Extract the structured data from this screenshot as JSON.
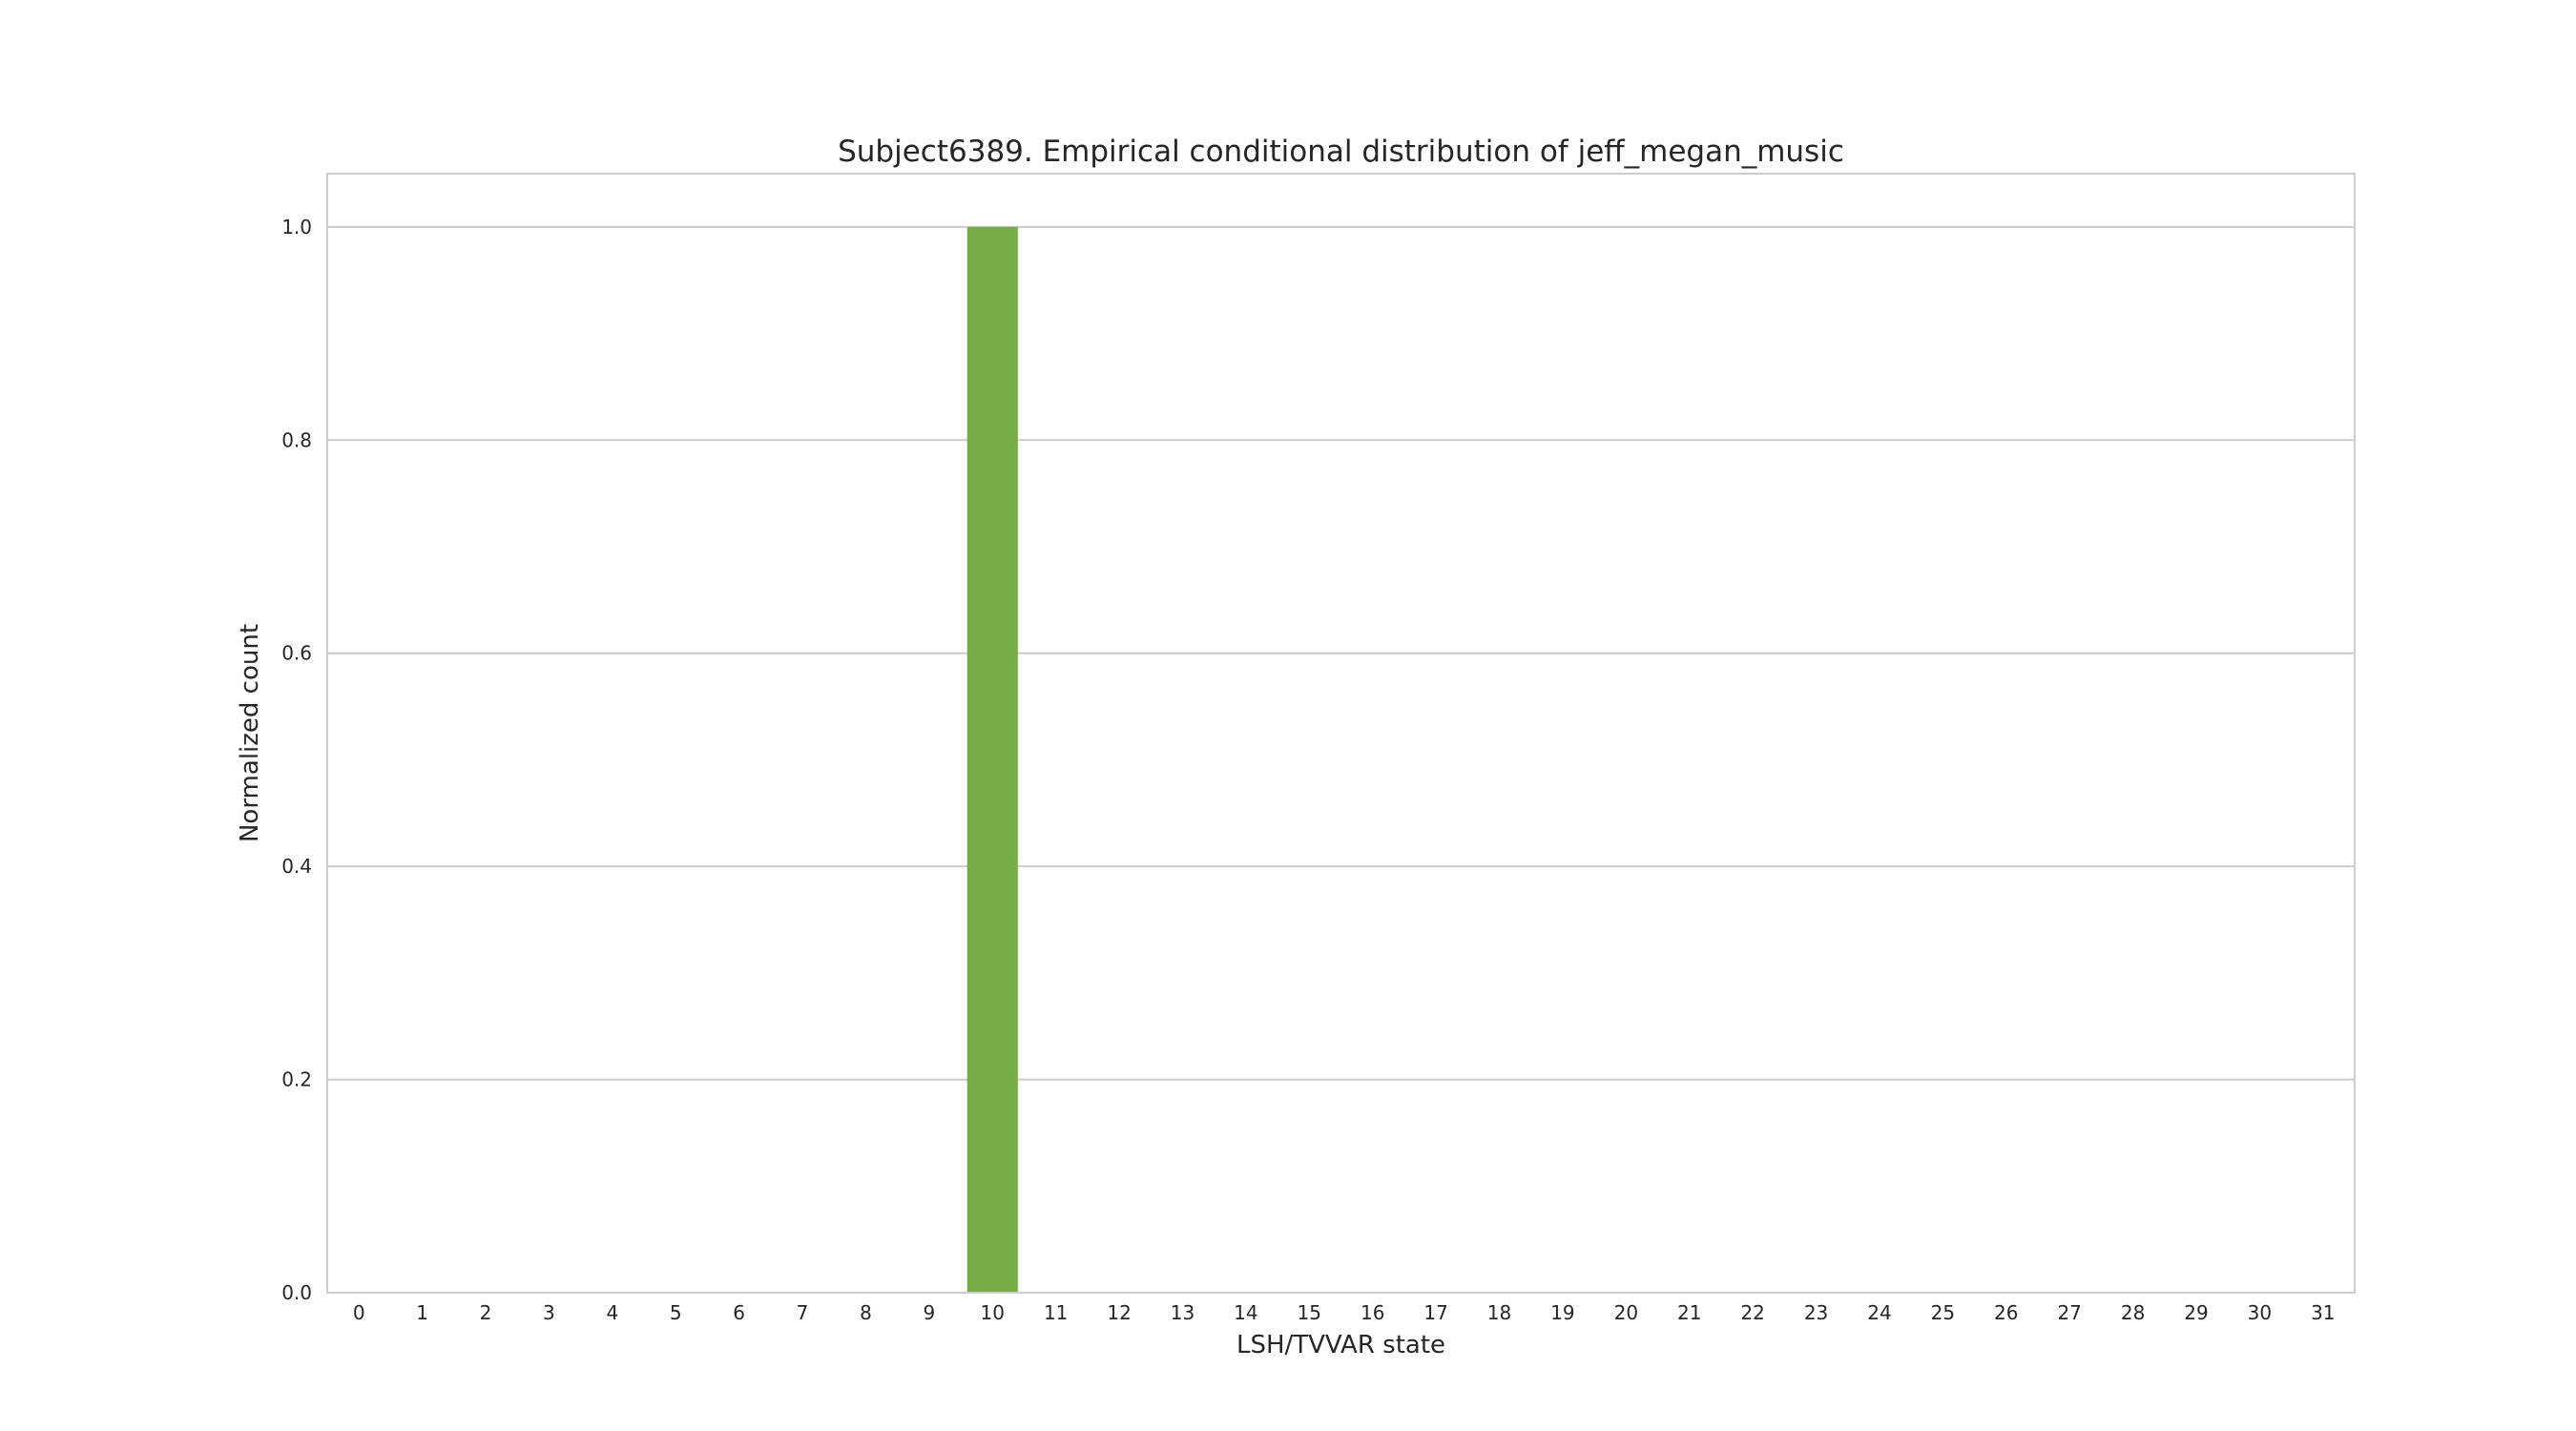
{
  "chart_data": {
    "type": "bar",
    "title": "Subject6389. Empirical conditional distribution of jeff_megan_music",
    "xlabel": "LSH/TVVAR state",
    "ylabel": "Normalized count",
    "categories": [
      "0",
      "1",
      "2",
      "3",
      "4",
      "5",
      "6",
      "7",
      "8",
      "9",
      "10",
      "11",
      "12",
      "13",
      "14",
      "15",
      "16",
      "17",
      "18",
      "19",
      "20",
      "21",
      "22",
      "23",
      "24",
      "25",
      "26",
      "27",
      "28",
      "29",
      "30",
      "31"
    ],
    "values": [
      0,
      0,
      0,
      0,
      0,
      0,
      0,
      0,
      0,
      0,
      1.0,
      0,
      0,
      0,
      0,
      0,
      0,
      0,
      0,
      0,
      0,
      0,
      0,
      0,
      0,
      0,
      0,
      0,
      0,
      0,
      0,
      0
    ],
    "ylim": [
      0,
      1.05
    ],
    "yticks": [
      "0.0",
      "0.2",
      "0.4",
      "0.6",
      "0.8",
      "1.0"
    ],
    "grid": true,
    "legend": "none",
    "colors": {
      "bar": "#77ab48",
      "grid": "#cccccc",
      "frame": "#cccccc",
      "text": "#262626"
    }
  }
}
